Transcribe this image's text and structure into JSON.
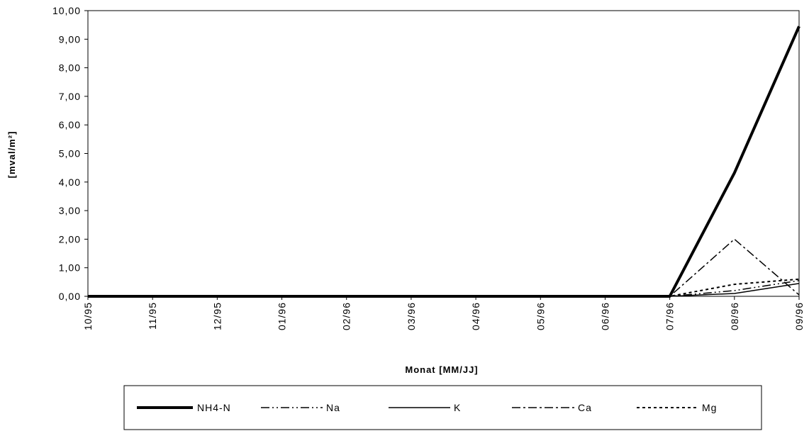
{
  "chart_data": {
    "type": "line",
    "title": "",
    "xlabel": "Monat [MM/JJ]",
    "ylabel": "[mval/m²]",
    "categories": [
      "10/95",
      "11/95",
      "12/95",
      "01/96",
      "02/96",
      "03/96",
      "04/96",
      "05/96",
      "06/96",
      "07/96",
      "08/96",
      "09/96"
    ],
    "ylim": [
      0,
      10
    ],
    "yticks": [
      "0,00",
      "1,00",
      "2,00",
      "3,00",
      "4,00",
      "5,00",
      "6,00",
      "7,00",
      "8,00",
      "9,00",
      "10,00"
    ],
    "grid": false,
    "legend_position": "bottom",
    "series": [
      {
        "name": "NH4-N",
        "style": "thick-solid",
        "color": "#000000",
        "values": [
          0,
          0,
          0,
          0,
          0,
          0,
          0,
          0,
          0,
          0,
          4.32,
          9.45
        ]
      },
      {
        "name": "Na",
        "style": "dash-dot-dot",
        "color": "#000000",
        "values": [
          0,
          0,
          0,
          0,
          0,
          0,
          0,
          0,
          0,
          0,
          0.2,
          0.55
        ]
      },
      {
        "name": "K",
        "style": "thin-solid",
        "color": "#000000",
        "values": [
          0,
          0,
          0,
          0,
          0,
          0,
          0,
          0,
          0,
          0,
          0.1,
          0.45
        ]
      },
      {
        "name": "Ca",
        "style": "dash-dot",
        "color": "#000000",
        "values": [
          0,
          0,
          0,
          0,
          0,
          0,
          0,
          0,
          0,
          0,
          2.0,
          0.05
        ]
      },
      {
        "name": "Mg",
        "style": "dotted",
        "color": "#000000",
        "values": [
          0,
          0,
          0,
          0,
          0,
          0,
          0,
          0,
          0,
          0,
          0.42,
          0.6
        ]
      }
    ]
  }
}
